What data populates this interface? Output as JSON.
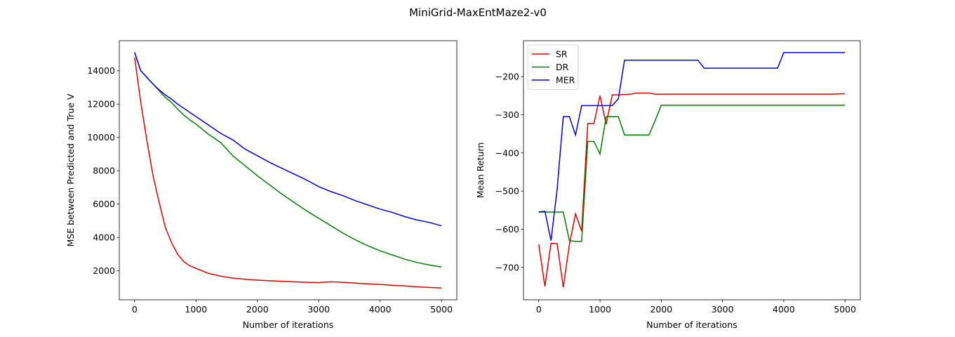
{
  "title": "MiniGrid-MaxEntMaze2-v0",
  "chart_data": [
    {
      "type": "line",
      "xlabel": "Number of iterations",
      "ylabel": "MSE between Predicted and True V",
      "xlim": [
        -250,
        5250
      ],
      "ylim": [
        260,
        15800
      ],
      "xticks": [
        0,
        1000,
        2000,
        3000,
        4000,
        5000
      ],
      "yticks": [
        2000,
        4000,
        6000,
        8000,
        10000,
        12000,
        14000
      ],
      "x": [
        0,
        100,
        200,
        300,
        400,
        500,
        600,
        700,
        800,
        900,
        1000,
        1200,
        1400,
        1600,
        1800,
        2000,
        2200,
        2400,
        2600,
        2800,
        3000,
        3200,
        3400,
        3600,
        3800,
        4000,
        4200,
        4400,
        4600,
        4800,
        5000
      ],
      "series": [
        {
          "color": "#e00000",
          "values": [
            14800,
            12100,
            9800,
            7700,
            6100,
            4600,
            3700,
            3000,
            2550,
            2300,
            2150,
            1850,
            1680,
            1560,
            1490,
            1440,
            1400,
            1370,
            1340,
            1310,
            1290,
            1340,
            1310,
            1260,
            1220,
            1180,
            1130,
            1090,
            1040,
            1000,
            970
          ]
        },
        {
          "color": "#008000",
          "values": [
            15100,
            14000,
            13600,
            13200,
            12800,
            12400,
            12100,
            11700,
            11350,
            11050,
            10800,
            10200,
            9700,
            8900,
            8300,
            7700,
            7150,
            6600,
            6100,
            5600,
            5150,
            4700,
            4250,
            3850,
            3500,
            3200,
            2950,
            2700,
            2500,
            2350,
            2230
          ]
        },
        {
          "color": "#0000e0",
          "values": [
            15100,
            14000,
            13600,
            13200,
            12850,
            12550,
            12300,
            12000,
            11750,
            11500,
            11250,
            10750,
            10250,
            9850,
            9300,
            8900,
            8500,
            8150,
            7800,
            7450,
            7050,
            6750,
            6500,
            6200,
            5950,
            5700,
            5500,
            5250,
            5050,
            4900,
            4700
          ]
        }
      ]
    },
    {
      "type": "line",
      "xlabel": "Number of iterations",
      "ylabel": "Mean Return",
      "legend": "upper left",
      "xlim": [
        -250,
        5250
      ],
      "ylim": [
        -785,
        -106
      ],
      "xticks": [
        0,
        1000,
        2000,
        3000,
        4000,
        5000
      ],
      "yticks": [
        {
          "value": -700,
          "label": "−700"
        },
        {
          "value": -600,
          "label": "−600"
        },
        {
          "value": -500,
          "label": "−500"
        },
        {
          "value": -400,
          "label": "−400"
        },
        {
          "value": -300,
          "label": "−300"
        },
        {
          "value": -200,
          "label": "−200"
        }
      ],
      "x": [
        0,
        100,
        200,
        300,
        400,
        500,
        600,
        700,
        800,
        900,
        1000,
        1100,
        1200,
        1300,
        1400,
        1500,
        1600,
        1700,
        1800,
        1900,
        2000,
        2600,
        2700,
        3900,
        4000,
        4800,
        5000
      ],
      "series": [
        {
          "name": "SR",
          "color": "#e00000",
          "values": [
            -640,
            -750,
            -637,
            -638,
            -752,
            -640,
            -560,
            -605,
            -323,
            -323,
            -250,
            -325,
            -248,
            -248,
            -247,
            -246,
            -243,
            -243,
            -243,
            -246,
            -246,
            -246,
            -246,
            -246,
            -246,
            -246,
            -245
          ]
        },
        {
          "name": "DR",
          "color": "#008000",
          "values": [
            -555,
            -555,
            -555,
            -555,
            -555,
            -630,
            -632,
            -632,
            -370,
            -370,
            -403,
            -305,
            -305,
            -305,
            -353,
            -353,
            -353,
            -353,
            -353,
            -315,
            -275,
            -275,
            -275,
            -275,
            -275,
            -275,
            -275
          ]
        },
        {
          "name": "MER",
          "color": "#0000e0",
          "values": [
            -555,
            -553,
            -630,
            -495,
            -305,
            -305,
            -353,
            -276,
            -276,
            -276,
            -276,
            -276,
            -276,
            -258,
            -157,
            -157,
            -157,
            -157,
            -157,
            -157,
            -157,
            -157,
            -178,
            -178,
            -137,
            -137,
            -137
          ]
        }
      ]
    }
  ]
}
